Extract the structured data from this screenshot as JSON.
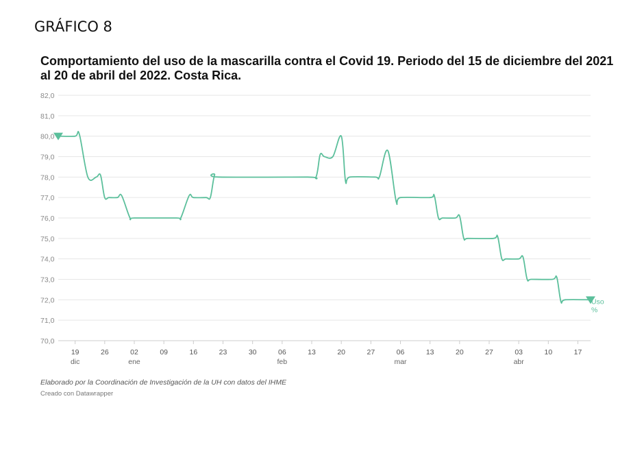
{
  "heading": "GRÁFICO 8",
  "footer": {
    "note": "Elaborado por la Coordinación de Investigación de la UH con datos del IHME",
    "credit": "Creado con Datawrapper"
  },
  "colors": {
    "series": "#5bbf9b",
    "grid": "#e6e6e6",
    "axis": "#cccccc"
  },
  "chart_data": {
    "type": "line",
    "title": "Comportamiento del uso de la mascarilla contra el Covid 19. Periodo del 15 de diciembre del 2021 al 20 de abril del 2022. Costa Rica.",
    "xlabel": "",
    "ylabel": "",
    "x_range": [
      "2021-12-15",
      "2022-04-20"
    ],
    "ylim": [
      70,
      82
    ],
    "yticks": [
      70,
      71,
      72,
      73,
      74,
      75,
      76,
      77,
      78,
      79,
      80,
      81,
      82
    ],
    "ytick_labels": [
      "70,0",
      "71,0",
      "72,0",
      "73,0",
      "74,0",
      "75,0",
      "76,0",
      "77,0",
      "78,0",
      "79,0",
      "80,0",
      "81,0",
      "82,0"
    ],
    "xticks": [
      {
        "date": "2021-12-19",
        "label": "19",
        "month": "dic"
      },
      {
        "date": "2021-12-26",
        "label": "26",
        "month": ""
      },
      {
        "date": "2022-01-02",
        "label": "02",
        "month": "ene"
      },
      {
        "date": "2022-01-09",
        "label": "09",
        "month": ""
      },
      {
        "date": "2022-01-16",
        "label": "16",
        "month": ""
      },
      {
        "date": "2022-01-23",
        "label": "23",
        "month": ""
      },
      {
        "date": "2022-01-30",
        "label": "30",
        "month": ""
      },
      {
        "date": "2022-02-06",
        "label": "06",
        "month": "feb"
      },
      {
        "date": "2022-02-13",
        "label": "13",
        "month": ""
      },
      {
        "date": "2022-02-20",
        "label": "20",
        "month": ""
      },
      {
        "date": "2022-02-27",
        "label": "27",
        "month": ""
      },
      {
        "date": "2022-03-06",
        "label": "06",
        "month": "mar"
      },
      {
        "date": "2022-03-13",
        "label": "13",
        "month": ""
      },
      {
        "date": "2022-03-20",
        "label": "20",
        "month": ""
      },
      {
        "date": "2022-03-27",
        "label": "27",
        "month": ""
      },
      {
        "date": "2022-04-03",
        "label": "03",
        "month": "abr"
      },
      {
        "date": "2022-04-10",
        "label": "10",
        "month": ""
      },
      {
        "date": "2022-04-17",
        "label": "17",
        "month": ""
      }
    ],
    "grid": true,
    "series": [
      {
        "name": "Uso %",
        "points": [
          [
            "2021-12-15",
            80.0
          ],
          [
            "2021-12-19",
            80.0
          ],
          [
            "2021-12-20",
            80.1
          ],
          [
            "2021-12-22",
            78.0
          ],
          [
            "2021-12-24",
            78.0
          ],
          [
            "2021-12-25",
            78.1
          ],
          [
            "2021-12-26",
            77.0
          ],
          [
            "2021-12-27",
            77.0
          ],
          [
            "2021-12-29",
            77.0
          ],
          [
            "2021-12-30",
            77.1
          ],
          [
            "2022-01-01",
            76.0
          ],
          [
            "2022-01-02",
            76.0
          ],
          [
            "2022-01-12",
            76.0
          ],
          [
            "2022-01-13",
            76.0
          ],
          [
            "2022-01-15",
            77.1
          ],
          [
            "2022-01-16",
            77.0
          ],
          [
            "2022-01-19",
            77.0
          ],
          [
            "2022-01-20",
            77.0
          ],
          [
            "2022-01-21",
            78.1
          ],
          [
            "2022-01-22",
            78.0
          ],
          [
            "2022-02-12",
            78.0
          ],
          [
            "2022-02-14",
            78.0
          ],
          [
            "2022-02-15",
            79.1
          ],
          [
            "2022-02-16",
            79.0
          ],
          [
            "2022-02-18",
            79.0
          ],
          [
            "2022-02-20",
            80.0
          ],
          [
            "2022-02-21",
            77.8
          ],
          [
            "2022-02-22",
            78.0
          ],
          [
            "2022-02-28",
            78.0
          ],
          [
            "2022-03-01",
            78.0
          ],
          [
            "2022-03-03",
            79.3
          ],
          [
            "2022-03-05",
            76.8
          ],
          [
            "2022-03-06",
            77.0
          ],
          [
            "2022-03-13",
            77.0
          ],
          [
            "2022-03-14",
            77.1
          ],
          [
            "2022-03-15",
            76.0
          ],
          [
            "2022-03-16",
            76.0
          ],
          [
            "2022-03-19",
            76.0
          ],
          [
            "2022-03-20",
            76.1
          ],
          [
            "2022-03-21",
            75.0
          ],
          [
            "2022-03-22",
            75.0
          ],
          [
            "2022-03-28",
            75.0
          ],
          [
            "2022-03-29",
            75.1
          ],
          [
            "2022-03-30",
            74.0
          ],
          [
            "2022-03-31",
            74.0
          ],
          [
            "2022-04-03",
            74.0
          ],
          [
            "2022-04-04",
            74.1
          ],
          [
            "2022-04-05",
            73.0
          ],
          [
            "2022-04-06",
            73.0
          ],
          [
            "2022-04-11",
            73.0
          ],
          [
            "2022-04-12",
            73.1
          ],
          [
            "2022-04-13",
            71.9
          ],
          [
            "2022-04-14",
            72.0
          ],
          [
            "2022-04-20",
            72.0
          ]
        ]
      }
    ],
    "series_label_lines": [
      "Uso",
      "%"
    ],
    "marker": "triangle-down at first and last point"
  }
}
